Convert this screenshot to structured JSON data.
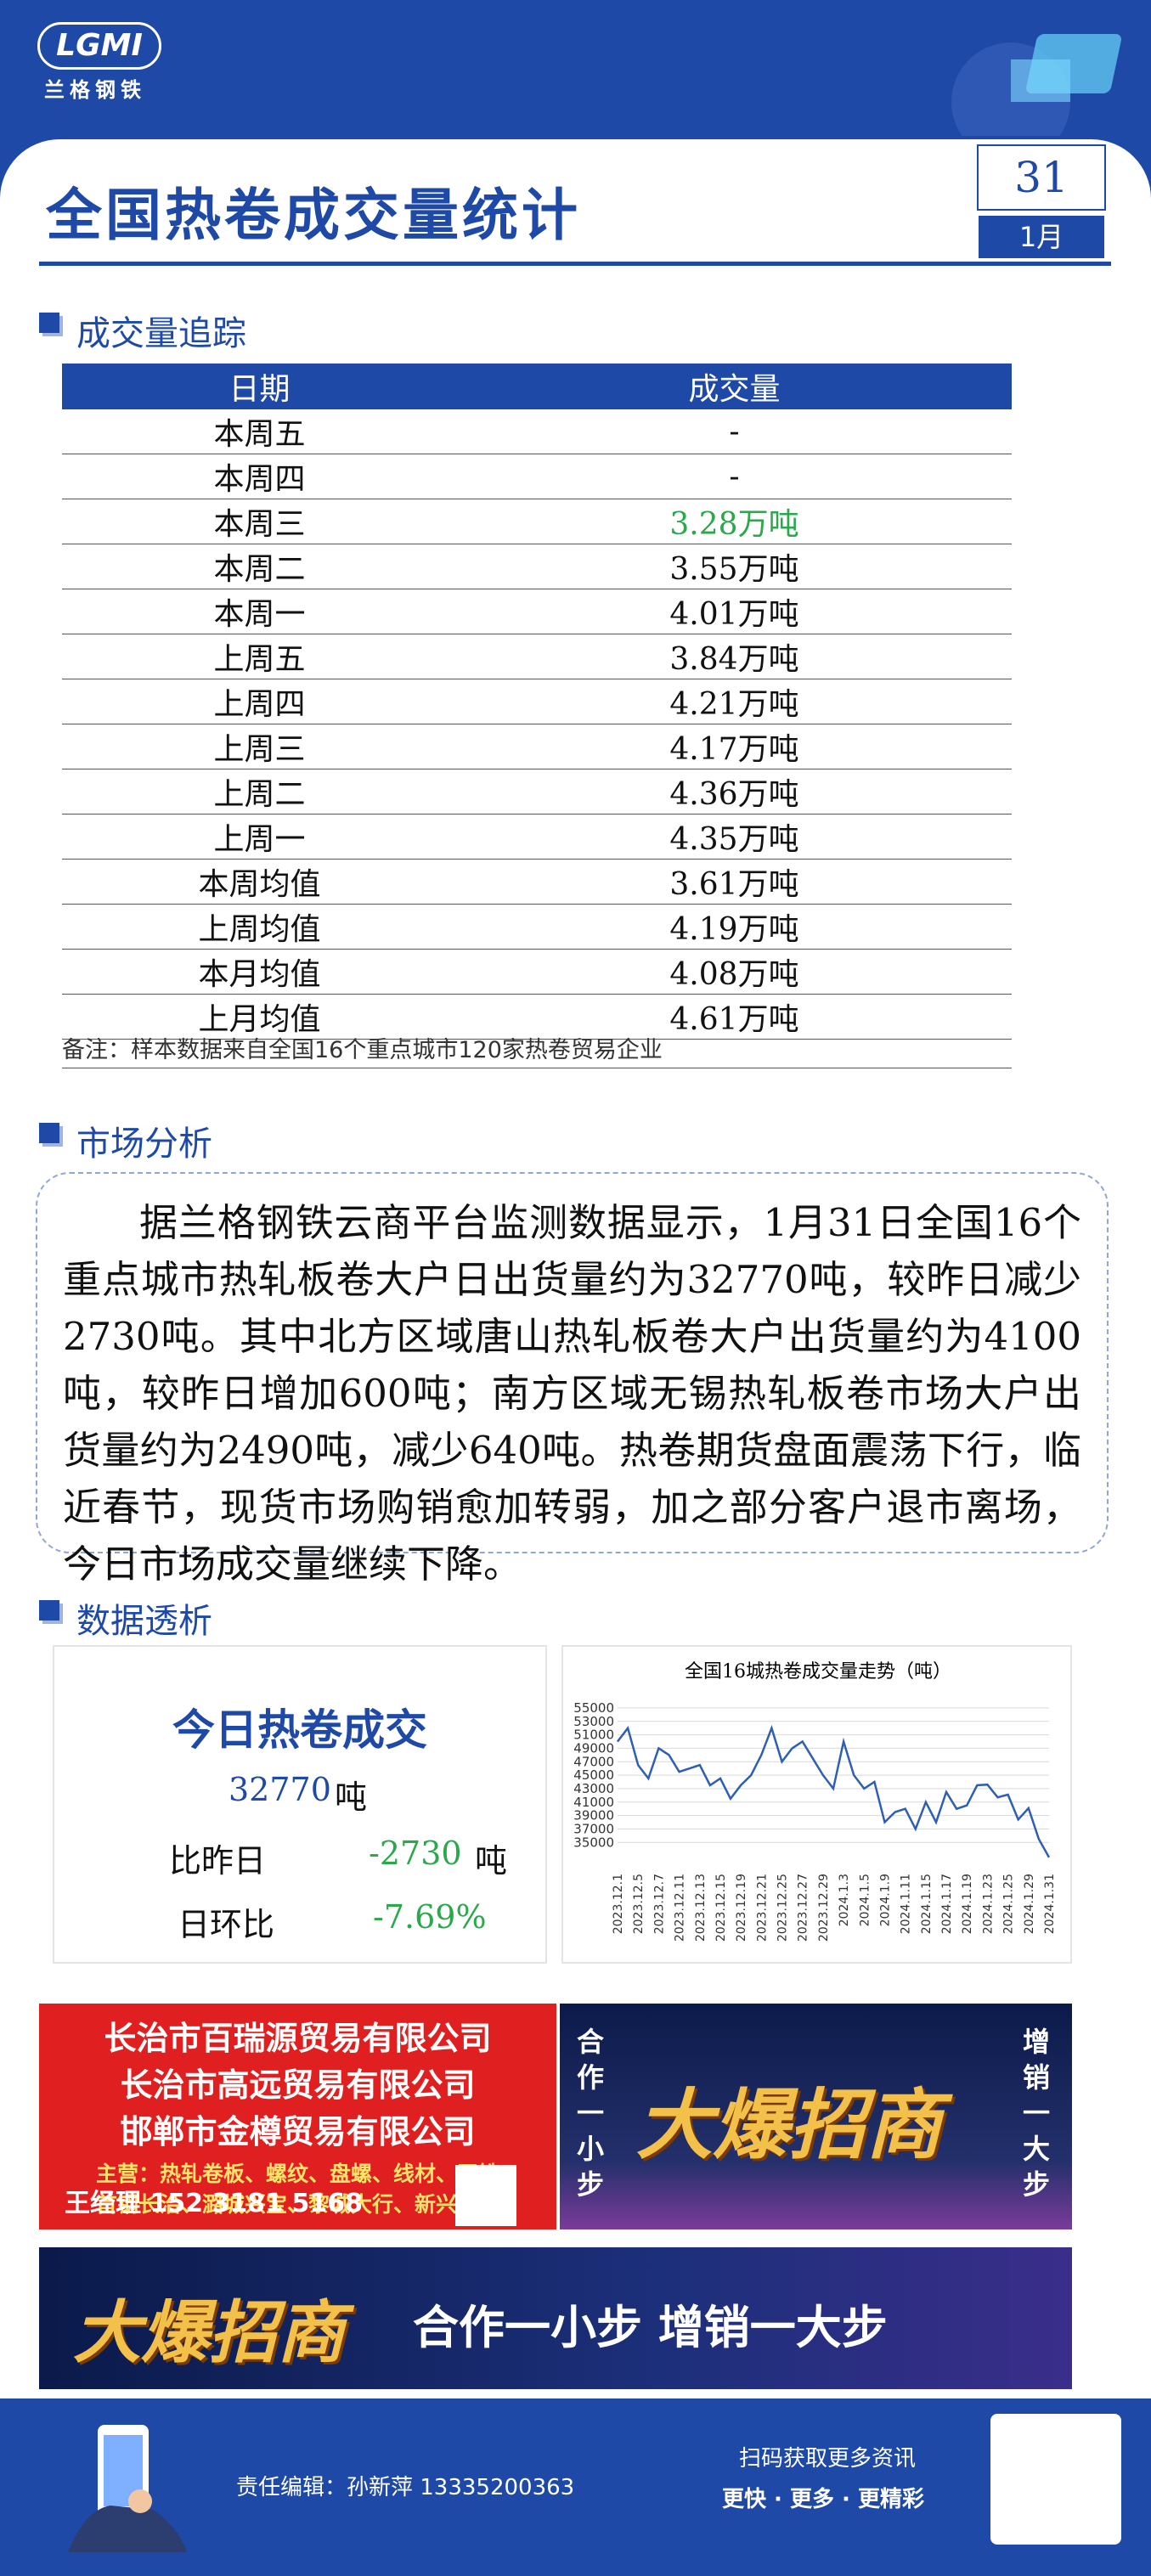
{
  "header": {
    "logo_mark": "LGMI",
    "logo_name": "兰格钢铁",
    "title": "全国热卷成交量统计",
    "day": "31",
    "month": "1月"
  },
  "tracking": {
    "section": "成交量追踪",
    "columns": [
      "日期",
      "成交量"
    ],
    "rows": [
      [
        "本周五",
        "-"
      ],
      [
        "本周四",
        "-"
      ],
      [
        "本周三",
        "3.28万吨"
      ],
      [
        "本周二",
        "3.55万吨"
      ],
      [
        "本周一",
        "4.01万吨"
      ],
      [
        "上周五",
        "3.84万吨"
      ],
      [
        "上周四",
        "4.21万吨"
      ],
      [
        "上周三",
        "4.17万吨"
      ],
      [
        "上周二",
        "4.36万吨"
      ],
      [
        "上周一",
        "4.35万吨"
      ],
      [
        "本周均值",
        "3.61万吨"
      ],
      [
        "上周均值",
        "4.19万吨"
      ],
      [
        "本月均值",
        "4.08万吨"
      ],
      [
        "上月均值",
        "4.61万吨"
      ]
    ],
    "note": "备注：样本数据来自全国16个重点城市120家热卷贸易企业"
  },
  "analysis": {
    "section": "市场分析",
    "text": "据兰格钢铁云商平台监测数据显示，1月31日全国16个重点城市热轧板卷大户日出货量约为32770吨，较昨日减少2730吨。其中北方区域唐山热轧板卷大户出货量约为4100吨，较昨日增加600吨；南方区域无锡热轧板卷市场大户出货量约为2490吨，减少640吨。热卷期货盘面震荡下行，临近春节，现货市场购销愈加转弱，加之部分客户退市离场，今日市场成交量继续下降。"
  },
  "insight": {
    "section": "数据透析",
    "heading": "今日热卷成交",
    "volume": "32770",
    "volume_unit": "吨",
    "change_label": "比昨日",
    "change": "-2730",
    "change_unit": "吨",
    "ratio_label": "日环比",
    "ratio": "-7.69%"
  },
  "chart_data": {
    "type": "line",
    "title": "全国16城热卷成交量走势（吨）",
    "categories": [
      "2023.12.1",
      null,
      "2023.12.5",
      null,
      "2023.12.7",
      null,
      "2023.12.11",
      null,
      "2023.12.13",
      null,
      "2023.12.15",
      null,
      "2023.12.19",
      null,
      "2023.12.21",
      null,
      "2023.12.25",
      null,
      "2023.12.27",
      null,
      "2023.12.29",
      null,
      "2024.1.3",
      null,
      "2024.1.5",
      null,
      "2024.1.9",
      null,
      "2024.1.11",
      null,
      "2024.1.15",
      null,
      "2024.1.17",
      null,
      "2024.1.19",
      null,
      "2024.1.23",
      null,
      "2024.1.25",
      null,
      "2024.1.29",
      null,
      "2024.1.31"
    ],
    "values": [
      50000,
      52000,
      46500,
      44500,
      49000,
      48000,
      45500,
      46000,
      46500,
      43500,
      44500,
      41500,
      43500,
      45000,
      48000,
      52000,
      47000,
      49000,
      50000,
      47500,
      45000,
      43000,
      50000,
      45000,
      43000,
      44000,
      38000,
      39500,
      40000,
      37000,
      41000,
      38000,
      42500,
      40000,
      40500,
      43500,
      43600,
      41700,
      42100,
      38400,
      40100,
      35500,
      32770
    ],
    "color": "#2e5fb3",
    "ylim": [
      32000,
      56000
    ],
    "yticks": [
      35000,
      37000,
      39000,
      41000,
      43000,
      45000,
      47000,
      49000,
      51000,
      53000,
      55000
    ],
    "grid": true
  },
  "ads": {
    "companies": [
      "长治市百瑞源贸易有限公司",
      "长治市高远贸易有限公司",
      "邯郸市金樽贸易有限公司"
    ],
    "business": "主营：热轧卷板、螺纹、盘螺、线材、天铁",
    "brands": "首钢长治、潞城兴宝、黎城大行、新兴铸管",
    "contact": "王经理 152 3181 5168",
    "slogan_left": "合作一小步",
    "headline": "大爆招商",
    "slogan_right": "增销一大步",
    "banner_headline": "大爆招商",
    "banner_slogan": "合作一小步 增销一大步"
  },
  "footer": {
    "editor": "责任编辑：孙新萍 13335200363",
    "scan": "扫码获取更多资讯",
    "tagline": "更快 · 更多 · 更精彩"
  }
}
